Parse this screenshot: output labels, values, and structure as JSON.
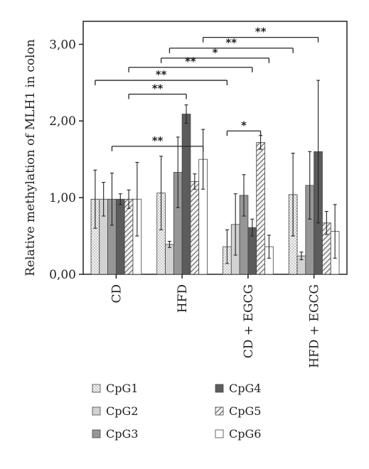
{
  "chart_data": {
    "type": "bar",
    "title": "",
    "xlabel": "",
    "ylabel": "Relative methylation of MLH1 in colon",
    "ylim": [
      0,
      3.3
    ],
    "yticks": [
      0,
      1,
      2,
      3
    ],
    "ytick_labels": [
      "0,00",
      "1,00",
      "2,00",
      "3,00"
    ],
    "categories": [
      "CD",
      "HFD",
      "CD + EGCG",
      "HFD + EGCG"
    ],
    "grid": false,
    "legend_position": "bottom",
    "series": [
      {
        "name": "CpG1",
        "pattern": "dots",
        "color": "#f4f4f4",
        "values": [
          0.98,
          1.06,
          0.36,
          1.04
        ],
        "errors": [
          0.38,
          0.48,
          0.22,
          0.54
        ]
      },
      {
        "name": "CpG2",
        "pattern": "solid",
        "color": "#d2d2d2",
        "values": [
          0.98,
          0.39,
          0.65,
          0.24
        ],
        "errors": [
          0.22,
          0.04,
          0.4,
          0.05
        ]
      },
      {
        "name": "CpG3",
        "pattern": "solid",
        "color": "#969696",
        "values": [
          0.98,
          1.33,
          1.03,
          1.16
        ],
        "errors": [
          0.34,
          0.46,
          0.27,
          0.44
        ]
      },
      {
        "name": "CpG4",
        "pattern": "solid",
        "color": "#5c5c5c",
        "values": [
          0.98,
          2.09,
          0.61,
          1.6
        ],
        "errors": [
          0.07,
          0.12,
          0.11,
          0.93
        ]
      },
      {
        "name": "CpG5",
        "pattern": "hatch",
        "color": "#dcdcdc",
        "values": [
          0.98,
          1.21,
          1.72,
          0.67
        ],
        "errors": [
          0.12,
          0.1,
          0.09,
          0.15
        ]
      },
      {
        "name": "CpG6",
        "pattern": "solid",
        "color": "#ffffff",
        "values": [
          0.98,
          1.5,
          0.36,
          0.56
        ],
        "errors": [
          0.48,
          0.39,
          0.15,
          0.35
        ]
      }
    ],
    "significance": [
      {
        "from_category": 0,
        "to_category": 1,
        "level": 1.68,
        "label": "**"
      },
      {
        "from_category": 0,
        "to_category": 2,
        "level": 2.46,
        "label": "**"
      },
      {
        "from_category": 1,
        "to_category": 2,
        "level": 2.68,
        "label": "*"
      },
      {
        "from_category": 0,
        "to_category": 3,
        "level": 2.53,
        "label": "**"
      }
    ],
    "significance_bars": [
      {
        "from": [
          0,
          0
        ],
        "to": [
          1,
          5
        ],
        "level": 1.68,
        "label": "**"
      },
      {
        "from": [
          1,
          3
        ],
        "to": [
          2,
          4
        ],
        "level": 2.46,
        "label": "**"
      },
      {
        "from": [
          0,
          0
        ],
        "to": [
          2,
          0
        ],
        "level": 2.53,
        "label": "**"
      },
      {
        "from": [
          1,
          2
        ],
        "to": [
          3,
          0
        ],
        "level": 2.72,
        "label": "*"
      },
      {
        "from": [
          1,
          4
        ],
        "to": [
          2,
          5
        ],
        "level": 2.68,
        "label": "*"
      },
      {
        "from": [
          2,
          0
        ],
        "to": [
          3,
          3
        ],
        "level": 2.99,
        "label": "**"
      },
      {
        "from": [
          0,
          4
        ],
        "to": [
          1,
          3
        ],
        "level": 1.7,
        "label": "**"
      },
      {
        "from": [
          0,
          2
        ],
        "to": [
          2,
          2
        ],
        "level": 2.7,
        "label": "**"
      },
      {
        "from": [
          2,
          0
        ],
        "to": [
          3,
          3
        ],
        "level": 2.84,
        "label": "**"
      }
    ],
    "sig_lines": [
      {
        "x1": [
          0,
          2
        ],
        "x2": [
          1,
          5
        ],
        "y": 1.67,
        "label": "**"
      },
      {
        "x1": [
          0,
          4
        ],
        "x2": [
          1,
          3
        ],
        "y": 2.35,
        "label": "**"
      },
      {
        "x1": [
          0,
          0
        ],
        "x2": [
          2,
          0
        ],
        "y": 2.53,
        "label": "**"
      },
      {
        "x1": [
          0,
          4
        ],
        "x2": [
          2,
          3
        ],
        "y": 2.7,
        "label": "**"
      },
      {
        "x1": [
          1,
          0
        ],
        "x2": [
          2,
          5
        ],
        "y": 2.82,
        "label": "*"
      },
      {
        "x1": [
          1,
          1
        ],
        "x2": [
          3,
          0
        ],
        "y": 2.95,
        "label": "**"
      },
      {
        "x1": [
          1,
          5
        ],
        "x2": [
          3,
          3
        ],
        "y": 3.09,
        "label": "**"
      },
      {
        "x1": [
          2,
          0
        ],
        "x2": [
          2,
          4
        ],
        "y": 1.87,
        "label": "*"
      }
    ]
  }
}
